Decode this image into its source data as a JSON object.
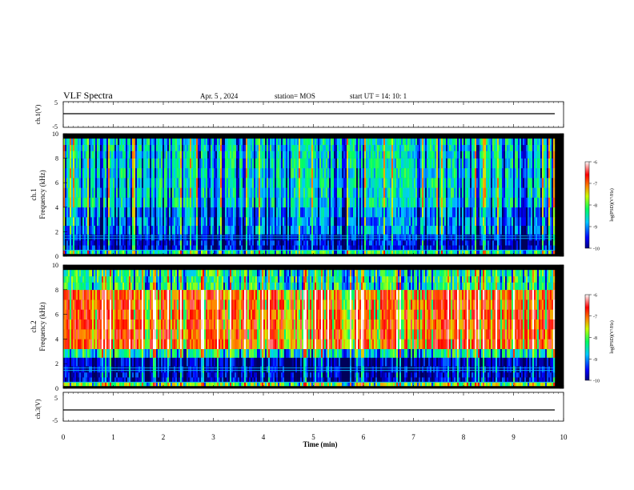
{
  "header": {
    "title": "VLF Spectra",
    "date": "Apr. 5 , 2024",
    "station": "station= MOS",
    "start": "start UT =   14: 10: 1"
  },
  "chart_data": [
    {
      "type": "line",
      "id": "ch1_waveform",
      "ylabel": "ch.1(V)",
      "ylim": [
        -5,
        5
      ],
      "yticks": [
        "5",
        "-5"
      ],
      "baseline": 0
    },
    {
      "type": "heatmap",
      "id": "ch1_spectrogram",
      "ylabel_line1": "ch.1",
      "ylabel_line2": "Frequency (kHz)",
      "xlim": [
        0,
        10
      ],
      "ylim": [
        0,
        10
      ],
      "yticks": [
        "0",
        "2",
        "4",
        "6",
        "8",
        "10"
      ],
      "colorbar": {
        "label": "log(PSD)(V²/Hz)",
        "range": [
          -10,
          -6
        ],
        "ticks": [
          "-6",
          "-7",
          "-8",
          "-9",
          "-10"
        ]
      }
    },
    {
      "type": "heatmap",
      "id": "ch2_spectrogram",
      "ylabel_line1": "ch.2",
      "ylabel_line2": "Frequency (kHz)",
      "xlim": [
        0,
        10
      ],
      "ylim": [
        0,
        10
      ],
      "yticks": [
        "0",
        "2",
        "4",
        "6",
        "8",
        "10"
      ],
      "colorbar": {
        "label": "log(PSD)(V²/Hz)",
        "range": [
          -10,
          -6
        ],
        "ticks": [
          "-6",
          "-7",
          "-8",
          "-9",
          "-10"
        ]
      }
    },
    {
      "type": "line",
      "id": "ch3_waveform",
      "ylabel": "ch.3(V)",
      "ylim": [
        -5,
        5
      ],
      "yticks": [
        "5",
        "-5"
      ],
      "baseline": 0
    }
  ],
  "xaxis": {
    "label": "Time (min)",
    "ticks": [
      "0",
      "1",
      "2",
      "3",
      "4",
      "5",
      "6",
      "7",
      "8",
      "9",
      "10"
    ]
  },
  "colors": {
    "background": "#000000",
    "scale": [
      "#00007f",
      "#0000ff",
      "#00ffff",
      "#00ff00",
      "#ffff00",
      "#ff0000",
      "#ffffff"
    ]
  }
}
